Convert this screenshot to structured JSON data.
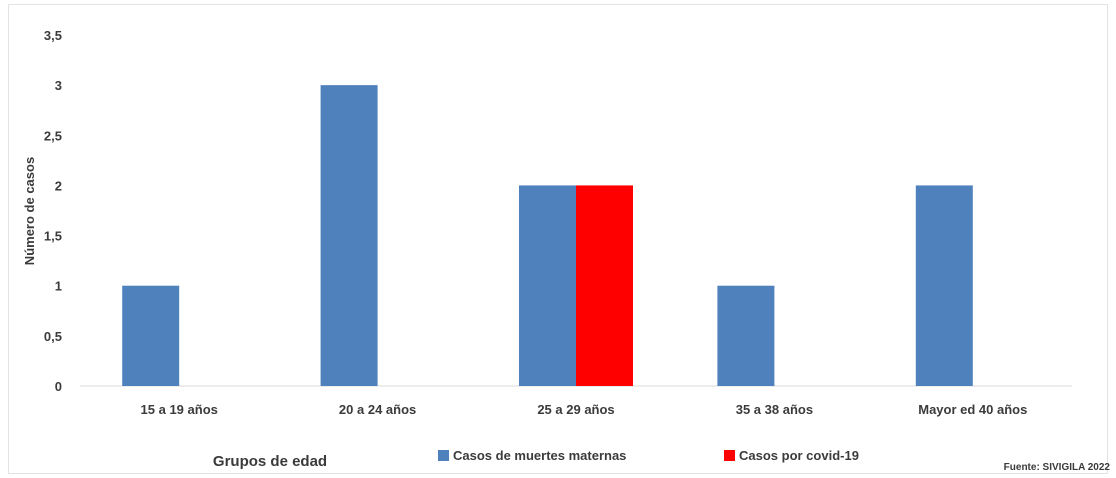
{
  "chart_data": {
    "type": "bar",
    "categories": [
      "15 a 19 años",
      "20 a 24 años",
      "25 a 29 años",
      "35 a 38 años",
      "Mayor ed 40 años"
    ],
    "series": [
      {
        "name": "Casos de muertes maternas",
        "color": "#4f81bd",
        "values": [
          1,
          3,
          2,
          1,
          2
        ]
      },
      {
        "name": "Casos por covid-19",
        "color": "#ff0000",
        "values": [
          0,
          0,
          2,
          0,
          0
        ]
      }
    ],
    "title": "",
    "xlabel": "Grupos de edad",
    "ylabel": "Número de casos",
    "ylim": [
      0,
      3.5
    ],
    "yticks": [
      "0",
      "0,5",
      "1",
      "1,5",
      "2",
      "2,5",
      "3",
      "3,5"
    ],
    "ytick_values": [
      0,
      0.5,
      1,
      1.5,
      2,
      2.5,
      3,
      3.5
    ],
    "grid": false,
    "legend_position": "bottom",
    "source": "Fuente: SIVIGILA 2022"
  }
}
